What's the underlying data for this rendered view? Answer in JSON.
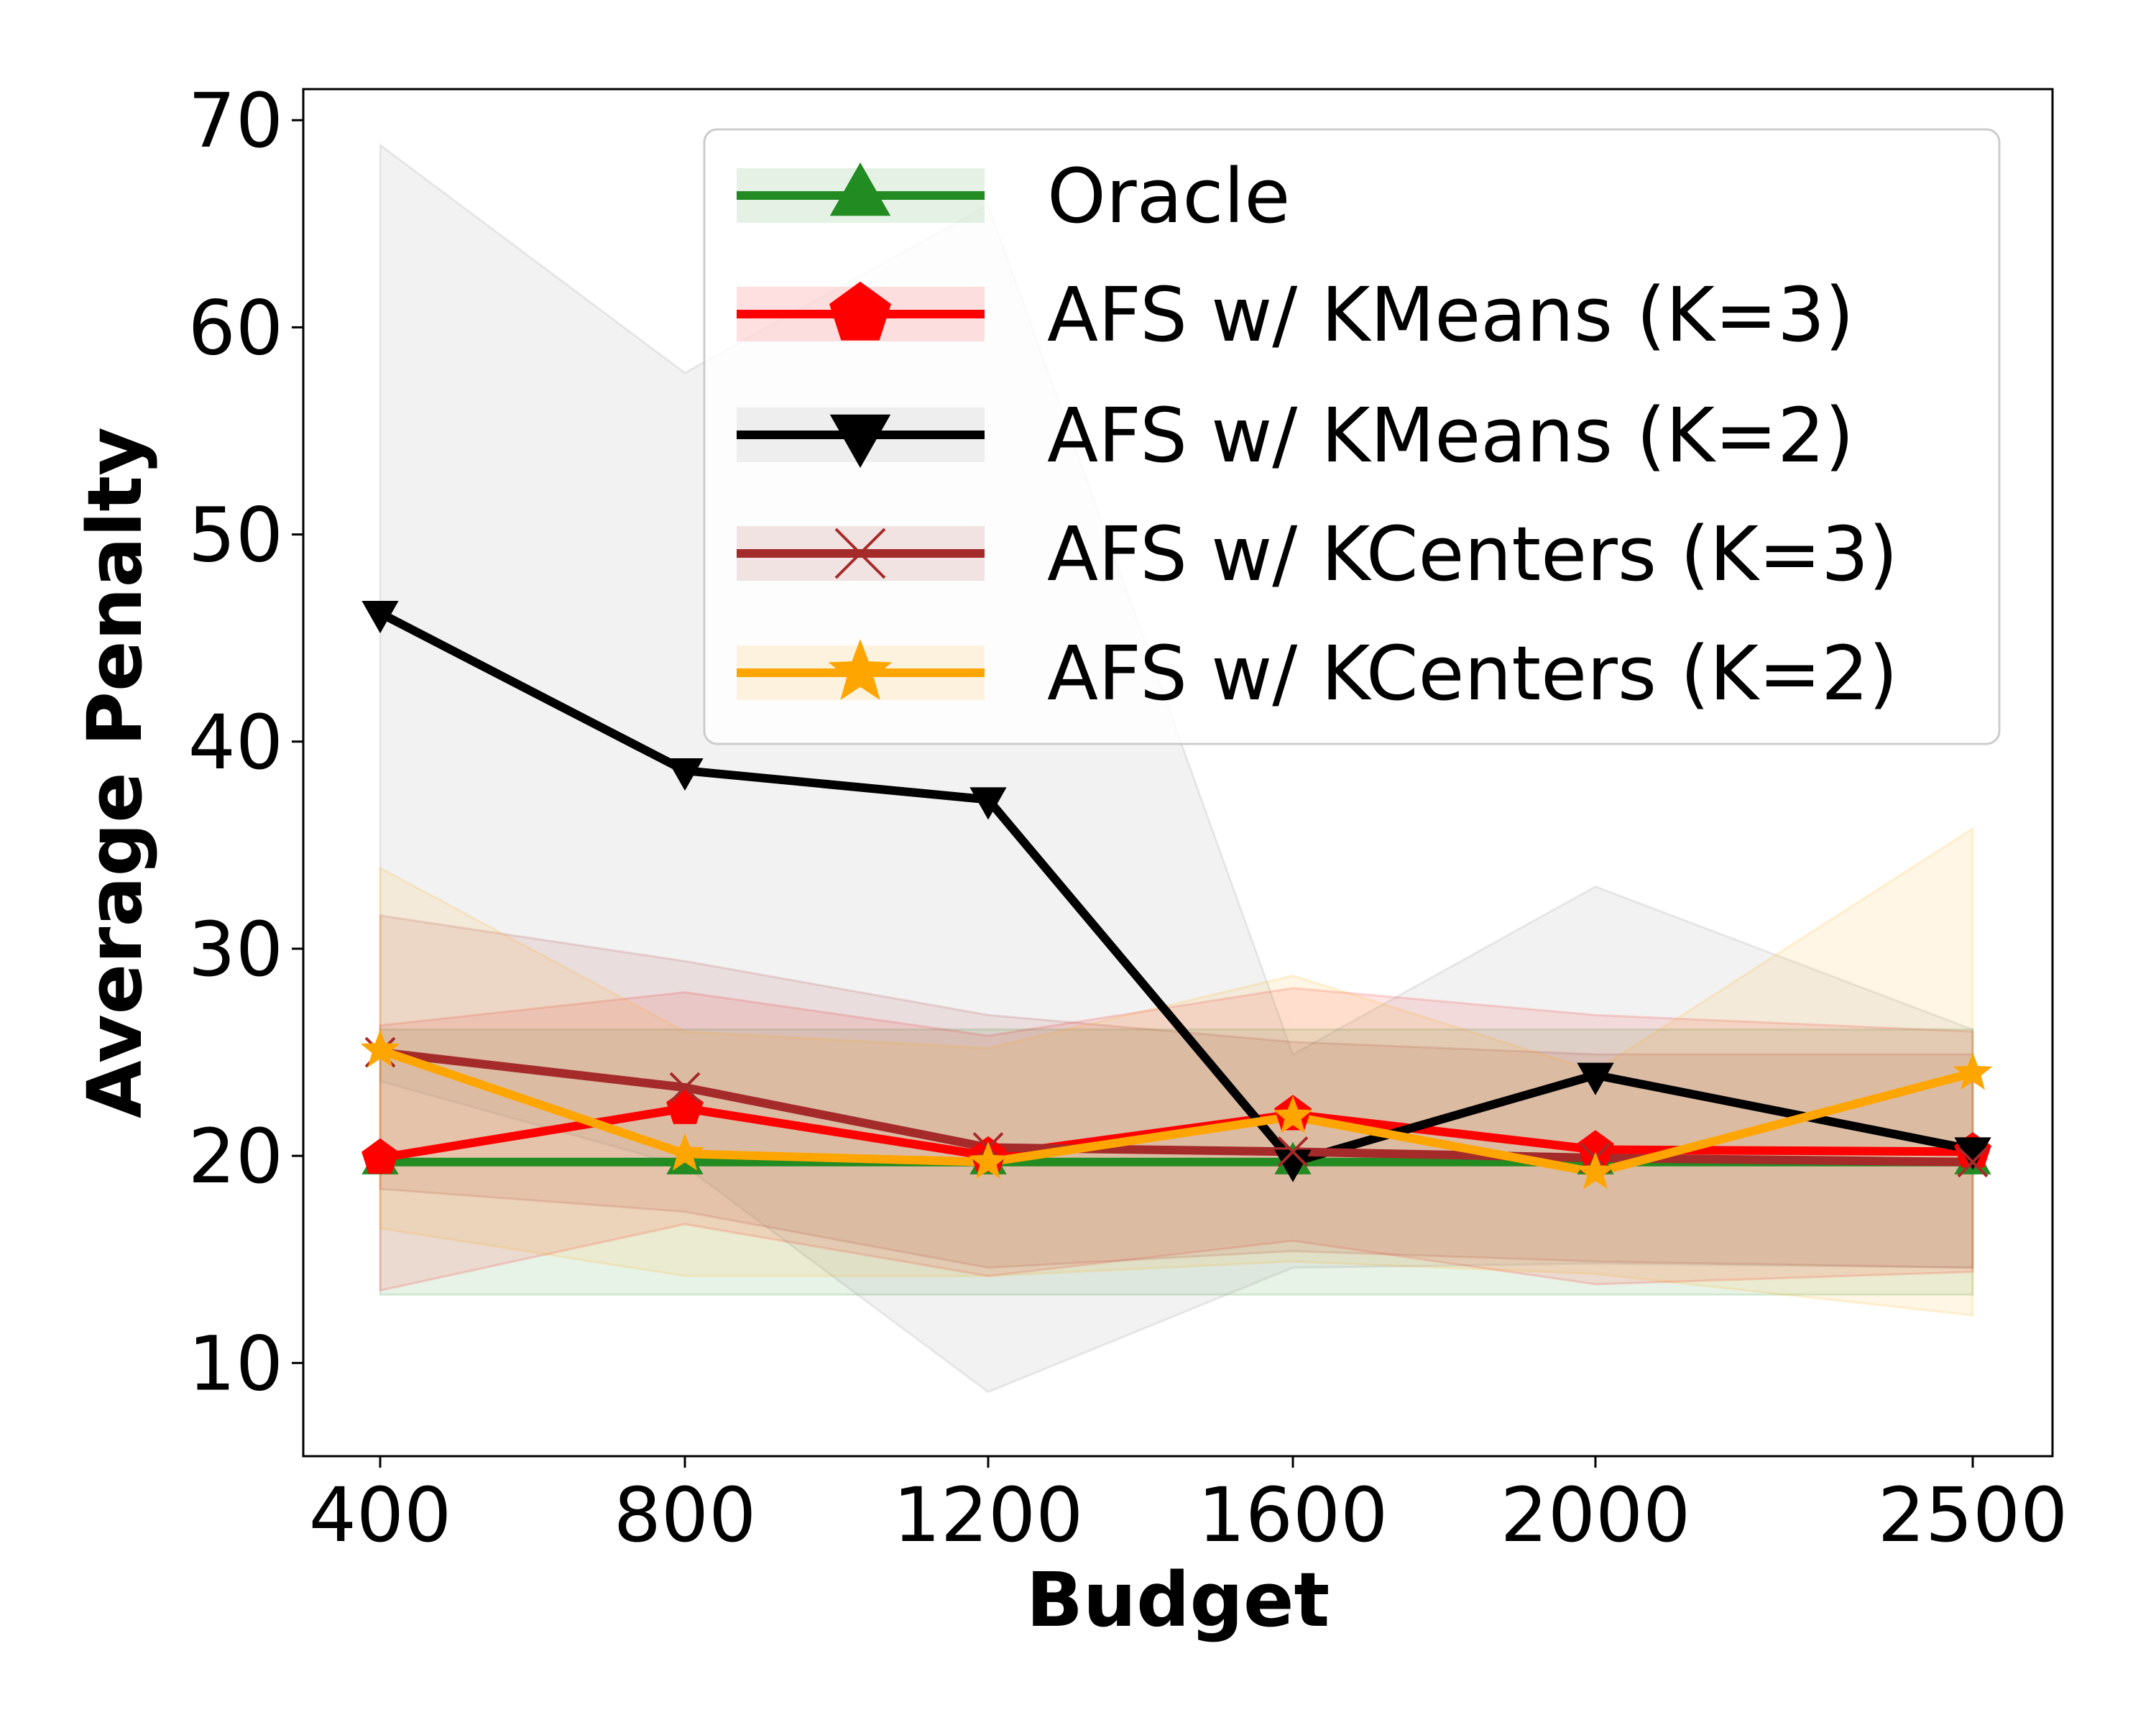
{
  "chart_data": {
    "type": "line",
    "title": "",
    "xlabel": "Budget",
    "ylabel": "Average Penalty",
    "x": [
      400,
      800,
      1200,
      1600,
      2000,
      2500
    ],
    "xticks": [
      "400",
      "800",
      "1200",
      "1600",
      "2000",
      "2500"
    ],
    "yticks": [
      10,
      20,
      30,
      40,
      50,
      60,
      70
    ],
    "ylim": [
      5.5,
      71.5
    ],
    "grid": false,
    "legend_position": "top-right",
    "series": [
      {
        "name": "Oracle",
        "color": "#228B22",
        "marker": "triangle-up",
        "values": [
          19.7,
          19.7,
          19.7,
          19.7,
          19.7,
          19.7
        ],
        "lower": [
          13.3,
          13.3,
          13.3,
          13.3,
          13.3,
          13.3
        ],
        "upper": [
          26.1,
          26.1,
          26.1,
          26.1,
          26.1,
          26.1
        ]
      },
      {
        "name": "AFS w/ KMeans (K=3)",
        "color": "#FF0000",
        "marker": "pentagon",
        "values": [
          19.9,
          22.3,
          20.0,
          22.0,
          20.3,
          20.2
        ],
        "lower": [
          13.5,
          16.7,
          14.2,
          15.9,
          13.8,
          14.4
        ],
        "upper": [
          26.3,
          27.9,
          25.8,
          28.1,
          26.8,
          26.0
        ]
      },
      {
        "name": "AFS w/ KMeans (K=2)",
        "color": "#000000",
        "marker": "triangle-down",
        "values": [
          46.2,
          38.6,
          37.2,
          19.7,
          23.9,
          20.3
        ],
        "lower": [
          23.6,
          19.5,
          8.6,
          14.6,
          14.8,
          14.6
        ],
        "upper": [
          68.8,
          57.8,
          65.9,
          24.9,
          33.0,
          26.1
        ]
      },
      {
        "name": "AFS w/ KCenters (K=3)",
        "color": "#A52A2A",
        "marker": "x",
        "values": [
          25.0,
          23.3,
          20.4,
          20.2,
          19.9,
          19.7
        ],
        "lower": [
          18.4,
          17.3,
          14.6,
          15.4,
          14.9,
          14.6
        ],
        "upper": [
          31.6,
          29.4,
          26.8,
          25.5,
          24.9,
          24.9
        ]
      },
      {
        "name": "AFS w/ KCenters (K=2)",
        "color": "#FFA500",
        "marker": "star",
        "values": [
          25.1,
          20.1,
          19.7,
          21.9,
          19.2,
          24.0
        ],
        "lower": [
          16.5,
          14.2,
          14.2,
          14.9,
          14.3,
          12.3
        ],
        "upper": [
          33.9,
          26.0,
          25.2,
          28.7,
          24.1,
          35.8
        ]
      }
    ]
  }
}
